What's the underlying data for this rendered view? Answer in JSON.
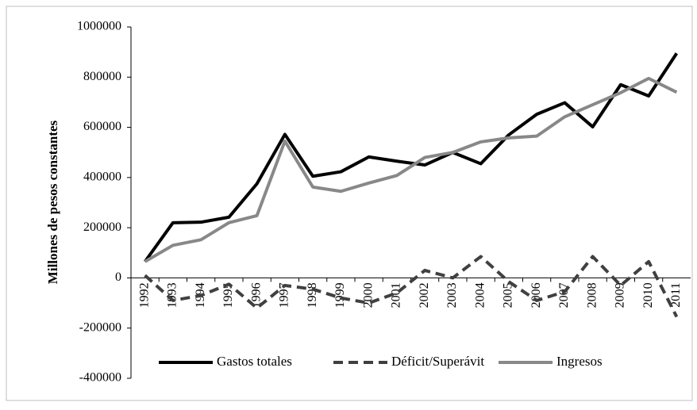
{
  "chart_data": {
    "type": "line",
    "y_label": "Millones de pesos constantes",
    "categories": [
      "1992",
      "1993",
      "1994",
      "1995",
      "1996",
      "1997",
      "1998",
      "1999",
      "2000",
      "2001",
      "2002",
      "2003",
      "2004",
      "2005",
      "2006",
      "2007",
      "2008",
      "2009",
      "2010",
      "2011"
    ],
    "series": [
      {
        "name": "Gastos totales",
        "color": "#000000",
        "dash": "solid",
        "values": [
          65000,
          220000,
          222000,
          242000,
          375000,
          572000,
          405000,
          423000,
          482000,
          465000,
          450000,
          500000,
          455000,
          570000,
          652000,
          698000,
          602000,
          770000,
          725000,
          895000
        ]
      },
      {
        "name": "Déficit/Superávit",
        "color": "#404040",
        "dash": "dashed",
        "values": [
          10000,
          -90000,
          -70000,
          -25000,
          -120000,
          -30000,
          -45000,
          -80000,
          -100000,
          -60000,
          30000,
          0,
          85000,
          -15000,
          -90000,
          -55000,
          85000,
          -30000,
          65000,
          -155000
        ]
      },
      {
        "name": "Ingresos",
        "color": "#888888",
        "dash": "solid",
        "values": [
          65000,
          130000,
          152000,
          220000,
          248000,
          545000,
          362000,
          345000,
          378000,
          408000,
          480000,
          500000,
          542000,
          558000,
          565000,
          642000,
          690000,
          738000,
          795000,
          740000
        ]
      }
    ],
    "ylim": [
      -400000,
      1000000
    ],
    "yticks": [
      -400000,
      -200000,
      0,
      200000,
      400000,
      600000,
      800000,
      1000000
    ],
    "legend": "bottom"
  }
}
